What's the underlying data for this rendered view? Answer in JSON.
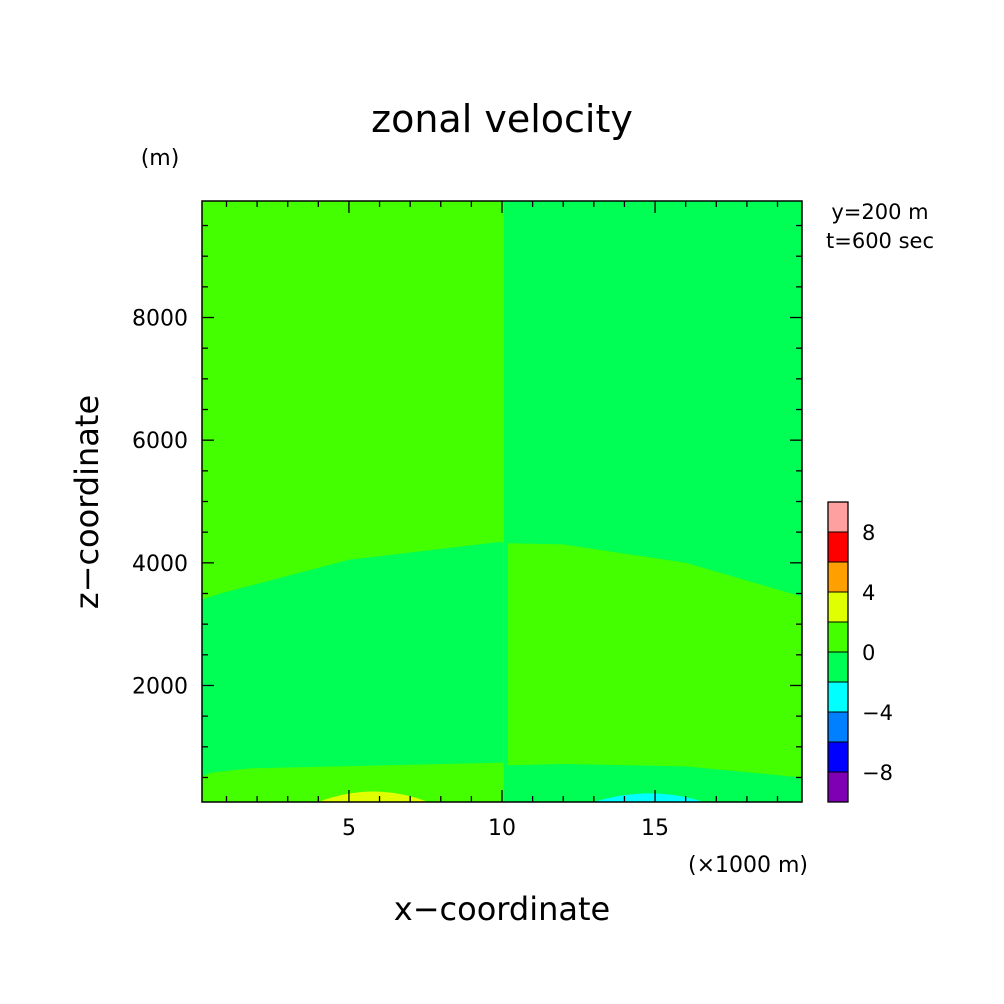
{
  "chart_data": {
    "type": "heatmap",
    "title": "zonal velocity",
    "xlabel": "x−coordinate",
    "ylabel": "z−coordinate",
    "x_unit": "(×1000 m)",
    "y_unit": "(m)",
    "xlim": [
      0.2,
      19.8
    ],
    "ylim": [
      100,
      9900
    ],
    "x_ticks": [
      5,
      10,
      15
    ],
    "x_tick_labels": [
      "5",
      "10",
      "15"
    ],
    "y_ticks": [
      2000,
      4000,
      6000,
      8000
    ],
    "y_tick_labels": [
      "2000",
      "4000",
      "6000",
      "8000"
    ],
    "annotations": [
      "y=200 m",
      "t=600 sec"
    ],
    "colorbar": {
      "levels": [
        -10,
        -8,
        -6,
        -4,
        -2,
        0,
        2,
        4,
        6,
        8,
        10
      ],
      "colors": [
        "#7f00b4",
        "#0000ff",
        "#0080ff",
        "#00ffff",
        "#00ff55",
        "#44ff00",
        "#e0ff00",
        "#ffa000",
        "#ff0000",
        "#ffa0a0"
      ],
      "tick_values": [
        -8,
        -4,
        0,
        4,
        8
      ],
      "tick_labels": [
        "−8",
        "−4",
        "0",
        "4",
        "8"
      ]
    },
    "regions": [
      {
        "name": "bottom-left-warm",
        "level": "2 to 4",
        "color": "#e0ff00",
        "x": [
          4.0,
          5.8,
          7.6
        ],
        "z": [
          100,
          270,
          100
        ]
      },
      {
        "name": "bottom-right-cold",
        "level": "-4 to -2",
        "color": "#00ffff",
        "x": [
          13.0,
          14.8,
          16.6
        ],
        "z": [
          100,
          240,
          100
        ]
      },
      {
        "name": "left-lower-positive",
        "level": "0 to 2",
        "color": "#44ff00",
        "x": [
          0.2,
          0.5,
          1.8,
          9.9
        ],
        "z_bottom": [
          510,
          580,
          650,
          740
        ]
      },
      {
        "name": "left-middle-negative",
        "level": "-2 to 0",
        "color": "#00ff55",
        "x": [
          0.2,
          0.8,
          5.0,
          9.9
        ],
        "z_top": [
          3400,
          3500,
          4050,
          4340
        ]
      },
      {
        "name": "right-middle-positive",
        "level": "0 to 2",
        "color": "#44ff00",
        "x": [
          10.2,
          12.0,
          16.0,
          19.8
        ],
        "z_top": [
          4320,
          4300,
          4000,
          3450
        ],
        "z_bottom": [
          700,
          720,
          680,
          500
        ]
      }
    ]
  }
}
